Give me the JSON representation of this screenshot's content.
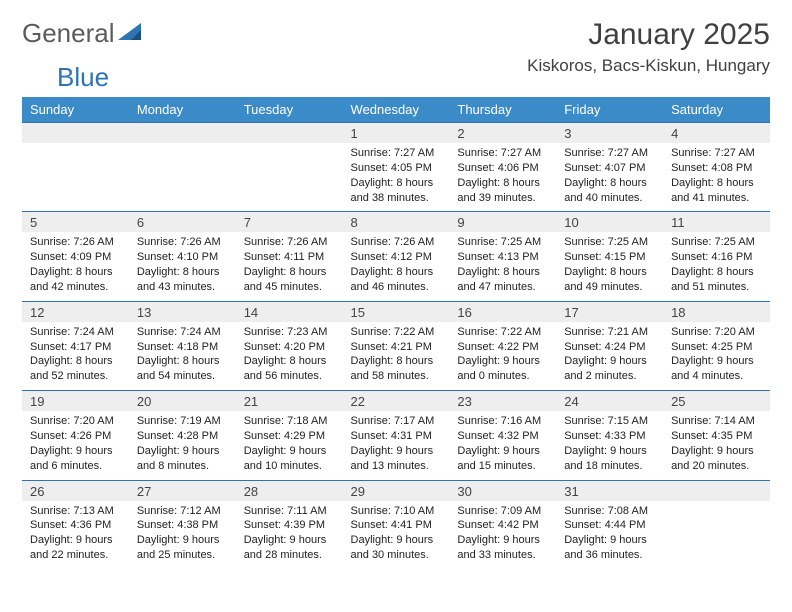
{
  "brand": {
    "word1": "General",
    "word2": "Blue"
  },
  "title": "January 2025",
  "location": "Kiskoros, Bacs-Kiskun, Hungary",
  "colors": {
    "header_bg": "#3b8bc9",
    "header_text": "#ffffff",
    "week_border": "#2e74b5",
    "daynum_bg": "#eeeeee",
    "logo_gray": "#5c5c5c",
    "logo_blue": "#2e74b5"
  },
  "day_headers": [
    "Sunday",
    "Monday",
    "Tuesday",
    "Wednesday",
    "Thursday",
    "Friday",
    "Saturday"
  ],
  "weeks": [
    [
      {
        "n": "",
        "lines": []
      },
      {
        "n": "",
        "lines": []
      },
      {
        "n": "",
        "lines": []
      },
      {
        "n": "1",
        "lines": [
          "Sunrise: 7:27 AM",
          "Sunset: 4:05 PM",
          "Daylight: 8 hours and 38 minutes."
        ]
      },
      {
        "n": "2",
        "lines": [
          "Sunrise: 7:27 AM",
          "Sunset: 4:06 PM",
          "Daylight: 8 hours and 39 minutes."
        ]
      },
      {
        "n": "3",
        "lines": [
          "Sunrise: 7:27 AM",
          "Sunset: 4:07 PM",
          "Daylight: 8 hours and 40 minutes."
        ]
      },
      {
        "n": "4",
        "lines": [
          "Sunrise: 7:27 AM",
          "Sunset: 4:08 PM",
          "Daylight: 8 hours and 41 minutes."
        ]
      }
    ],
    [
      {
        "n": "5",
        "lines": [
          "Sunrise: 7:26 AM",
          "Sunset: 4:09 PM",
          "Daylight: 8 hours and 42 minutes."
        ]
      },
      {
        "n": "6",
        "lines": [
          "Sunrise: 7:26 AM",
          "Sunset: 4:10 PM",
          "Daylight: 8 hours and 43 minutes."
        ]
      },
      {
        "n": "7",
        "lines": [
          "Sunrise: 7:26 AM",
          "Sunset: 4:11 PM",
          "Daylight: 8 hours and 45 minutes."
        ]
      },
      {
        "n": "8",
        "lines": [
          "Sunrise: 7:26 AM",
          "Sunset: 4:12 PM",
          "Daylight: 8 hours and 46 minutes."
        ]
      },
      {
        "n": "9",
        "lines": [
          "Sunrise: 7:25 AM",
          "Sunset: 4:13 PM",
          "Daylight: 8 hours and 47 minutes."
        ]
      },
      {
        "n": "10",
        "lines": [
          "Sunrise: 7:25 AM",
          "Sunset: 4:15 PM",
          "Daylight: 8 hours and 49 minutes."
        ]
      },
      {
        "n": "11",
        "lines": [
          "Sunrise: 7:25 AM",
          "Sunset: 4:16 PM",
          "Daylight: 8 hours and 51 minutes."
        ]
      }
    ],
    [
      {
        "n": "12",
        "lines": [
          "Sunrise: 7:24 AM",
          "Sunset: 4:17 PM",
          "Daylight: 8 hours and 52 minutes."
        ]
      },
      {
        "n": "13",
        "lines": [
          "Sunrise: 7:24 AM",
          "Sunset: 4:18 PM",
          "Daylight: 8 hours and 54 minutes."
        ]
      },
      {
        "n": "14",
        "lines": [
          "Sunrise: 7:23 AM",
          "Sunset: 4:20 PM",
          "Daylight: 8 hours and 56 minutes."
        ]
      },
      {
        "n": "15",
        "lines": [
          "Sunrise: 7:22 AM",
          "Sunset: 4:21 PM",
          "Daylight: 8 hours and 58 minutes."
        ]
      },
      {
        "n": "16",
        "lines": [
          "Sunrise: 7:22 AM",
          "Sunset: 4:22 PM",
          "Daylight: 9 hours and 0 minutes."
        ]
      },
      {
        "n": "17",
        "lines": [
          "Sunrise: 7:21 AM",
          "Sunset: 4:24 PM",
          "Daylight: 9 hours and 2 minutes."
        ]
      },
      {
        "n": "18",
        "lines": [
          "Sunrise: 7:20 AM",
          "Sunset: 4:25 PM",
          "Daylight: 9 hours and 4 minutes."
        ]
      }
    ],
    [
      {
        "n": "19",
        "lines": [
          "Sunrise: 7:20 AM",
          "Sunset: 4:26 PM",
          "Daylight: 9 hours and 6 minutes."
        ]
      },
      {
        "n": "20",
        "lines": [
          "Sunrise: 7:19 AM",
          "Sunset: 4:28 PM",
          "Daylight: 9 hours and 8 minutes."
        ]
      },
      {
        "n": "21",
        "lines": [
          "Sunrise: 7:18 AM",
          "Sunset: 4:29 PM",
          "Daylight: 9 hours and 10 minutes."
        ]
      },
      {
        "n": "22",
        "lines": [
          "Sunrise: 7:17 AM",
          "Sunset: 4:31 PM",
          "Daylight: 9 hours and 13 minutes."
        ]
      },
      {
        "n": "23",
        "lines": [
          "Sunrise: 7:16 AM",
          "Sunset: 4:32 PM",
          "Daylight: 9 hours and 15 minutes."
        ]
      },
      {
        "n": "24",
        "lines": [
          "Sunrise: 7:15 AM",
          "Sunset: 4:33 PM",
          "Daylight: 9 hours and 18 minutes."
        ]
      },
      {
        "n": "25",
        "lines": [
          "Sunrise: 7:14 AM",
          "Sunset: 4:35 PM",
          "Daylight: 9 hours and 20 minutes."
        ]
      }
    ],
    [
      {
        "n": "26",
        "lines": [
          "Sunrise: 7:13 AM",
          "Sunset: 4:36 PM",
          "Daylight: 9 hours and 22 minutes."
        ]
      },
      {
        "n": "27",
        "lines": [
          "Sunrise: 7:12 AM",
          "Sunset: 4:38 PM",
          "Daylight: 9 hours and 25 minutes."
        ]
      },
      {
        "n": "28",
        "lines": [
          "Sunrise: 7:11 AM",
          "Sunset: 4:39 PM",
          "Daylight: 9 hours and 28 minutes."
        ]
      },
      {
        "n": "29",
        "lines": [
          "Sunrise: 7:10 AM",
          "Sunset: 4:41 PM",
          "Daylight: 9 hours and 30 minutes."
        ]
      },
      {
        "n": "30",
        "lines": [
          "Sunrise: 7:09 AM",
          "Sunset: 4:42 PM",
          "Daylight: 9 hours and 33 minutes."
        ]
      },
      {
        "n": "31",
        "lines": [
          "Sunrise: 7:08 AM",
          "Sunset: 4:44 PM",
          "Daylight: 9 hours and 36 minutes."
        ]
      },
      {
        "n": "",
        "lines": []
      }
    ]
  ]
}
